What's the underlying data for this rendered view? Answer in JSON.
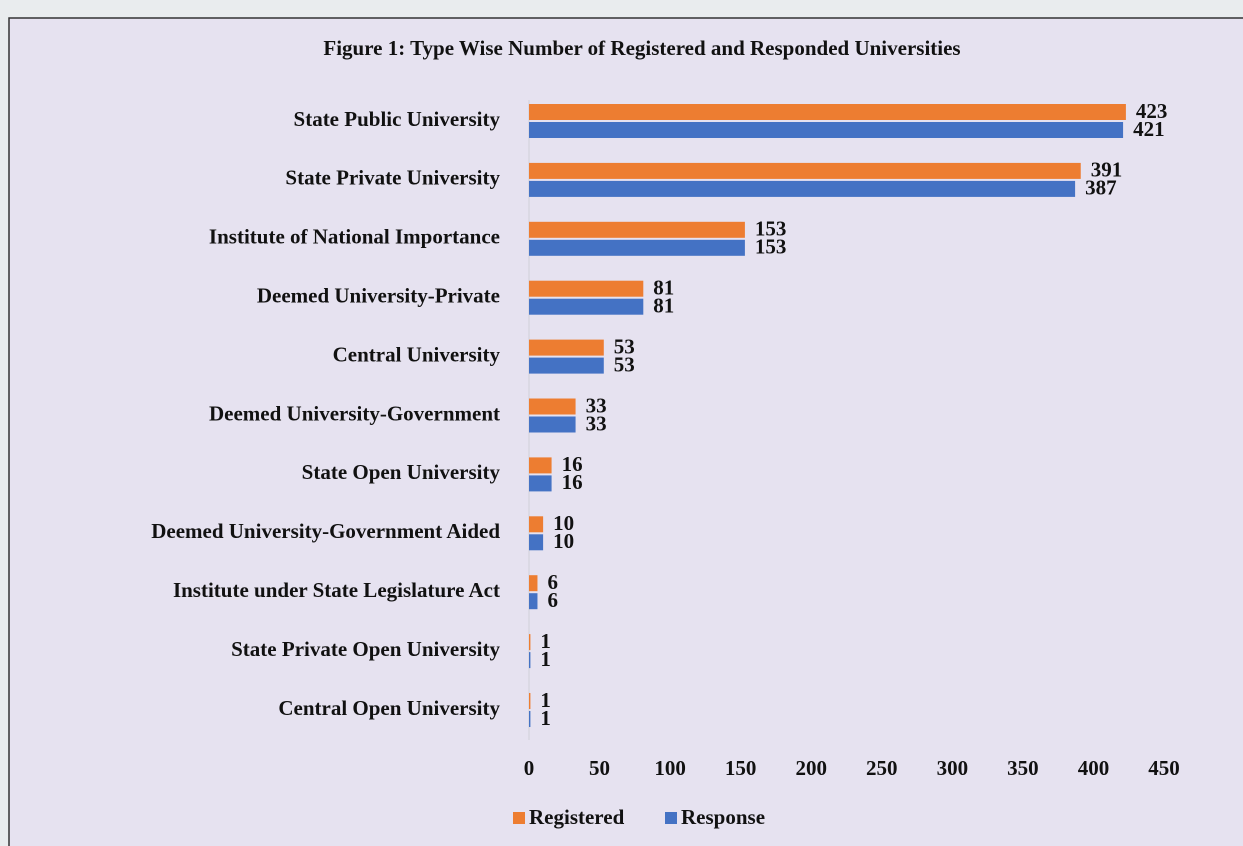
{
  "chart_data": {
    "type": "hbar",
    "title": "Figure 1: Type Wise Number of Registered and Responded Universities",
    "categories": [
      "State Public University",
      "State Private University",
      "Institute of National Importance",
      "Deemed University-Private",
      "Central University",
      "Deemed University-Government",
      "State Open University",
      "Deemed University-Government Aided",
      "Institute under State Legislature Act",
      "State Private Open University",
      "Central Open University"
    ],
    "series": [
      {
        "name": "Registered",
        "color": "#ed7d31",
        "values": [
          423,
          391,
          153,
          81,
          53,
          33,
          16,
          10,
          6,
          1,
          1
        ]
      },
      {
        "name": "Response",
        "color": "#4472c4",
        "values": [
          421,
          387,
          153,
          81,
          53,
          33,
          16,
          10,
          6,
          1,
          1
        ]
      }
    ],
    "xlim": [
      0,
      450
    ],
    "xticks": [
      0,
      50,
      100,
      150,
      200,
      250,
      300,
      350,
      400,
      450
    ],
    "legend": "bottom"
  }
}
